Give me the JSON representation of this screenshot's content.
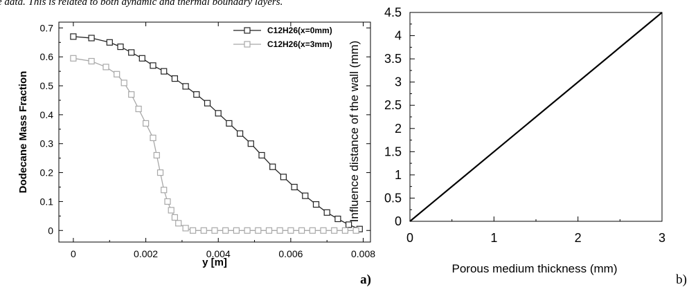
{
  "caption_fragment": "e data. This is related to both dynamic and thermal boundary layers.",
  "colors": {
    "series_dark": "#222222",
    "series_light": "#a8a8a8",
    "line_b": "#000000"
  },
  "chart_data": [
    {
      "panel_label": "a)",
      "type": "line",
      "xlabel": "y [m]",
      "ylabel": "Dodecane Mass Fraction",
      "xlim": [
        -0.0004,
        0.0082
      ],
      "ylim": [
        -0.04,
        0.72
      ],
      "x_ticks": [
        0,
        0.002,
        0.004,
        0.006,
        0.008
      ],
      "x_tick_labels": [
        "0",
        "0.002",
        "0.004",
        "0.006",
        "0.008"
      ],
      "y_ticks": [
        0,
        0.1,
        0.2,
        0.3,
        0.4,
        0.5,
        0.6,
        0.7
      ],
      "y_tick_labels": [
        "0",
        "0.1",
        "0.2",
        "0.3",
        "0.4",
        "0.5",
        "0.6",
        "0.7"
      ],
      "legend_position": "top-right",
      "marker": "square",
      "series": [
        {
          "name": "C12H26(x=0mm)",
          "x": [
            0,
            0.0005,
            0.001,
            0.0013,
            0.0016,
            0.0019,
            0.0022,
            0.0025,
            0.0028,
            0.0031,
            0.0034,
            0.0037,
            0.004,
            0.0043,
            0.0046,
            0.0049,
            0.0052,
            0.0055,
            0.0058,
            0.0061,
            0.0064,
            0.0067,
            0.007,
            0.0073,
            0.0076,
            0.0079
          ],
          "y": [
            0.67,
            0.665,
            0.65,
            0.635,
            0.615,
            0.595,
            0.57,
            0.55,
            0.525,
            0.498,
            0.47,
            0.44,
            0.405,
            0.37,
            0.335,
            0.3,
            0.26,
            0.22,
            0.185,
            0.15,
            0.12,
            0.09,
            0.062,
            0.04,
            0.02,
            0.005
          ]
        },
        {
          "name": "C12H26(x=3mm)",
          "x": [
            0,
            0.0005,
            0.0009,
            0.0012,
            0.0014,
            0.0016,
            0.0018,
            0.002,
            0.0022,
            0.0023,
            0.0024,
            0.0025,
            0.0026,
            0.0027,
            0.0028,
            0.0029,
            0.0031,
            0.0033,
            0.0036,
            0.0039,
            0.0042,
            0.0045,
            0.0048,
            0.0051,
            0.0054,
            0.0057,
            0.006,
            0.0063,
            0.0066,
            0.0069,
            0.0072,
            0.0075,
            0.0078
          ],
          "y": [
            0.595,
            0.585,
            0.565,
            0.54,
            0.51,
            0.47,
            0.42,
            0.37,
            0.32,
            0.26,
            0.2,
            0.14,
            0.1,
            0.07,
            0.045,
            0.025,
            0.008,
            0.0,
            0.0,
            0.0,
            0.0,
            0.0,
            0.0,
            0.0,
            0.0,
            0.0,
            0.0,
            0.0,
            0.0,
            0.0,
            0.0,
            0.0,
            0.0
          ]
        }
      ]
    },
    {
      "panel_label": "b)",
      "type": "line",
      "xlabel": "Porous medium thickness (mm)",
      "ylabel": "Influence distance of the wall (mm)",
      "xlim": [
        0,
        3
      ],
      "ylim": [
        0,
        4.5
      ],
      "x_ticks": [
        0,
        1,
        2,
        3
      ],
      "x_tick_labels": [
        "0",
        "1",
        "2",
        "3"
      ],
      "y_ticks": [
        0,
        0.5,
        1,
        1.5,
        2,
        2.5,
        3,
        3.5,
        4,
        4.5
      ],
      "y_tick_labels": [
        "0",
        "0.5",
        "1",
        "1.5",
        "2",
        "2.5",
        "3",
        "3.5",
        "4",
        "4.5"
      ],
      "series": [
        {
          "x": [
            0,
            3
          ],
          "y": [
            0,
            4.5
          ]
        }
      ]
    }
  ]
}
